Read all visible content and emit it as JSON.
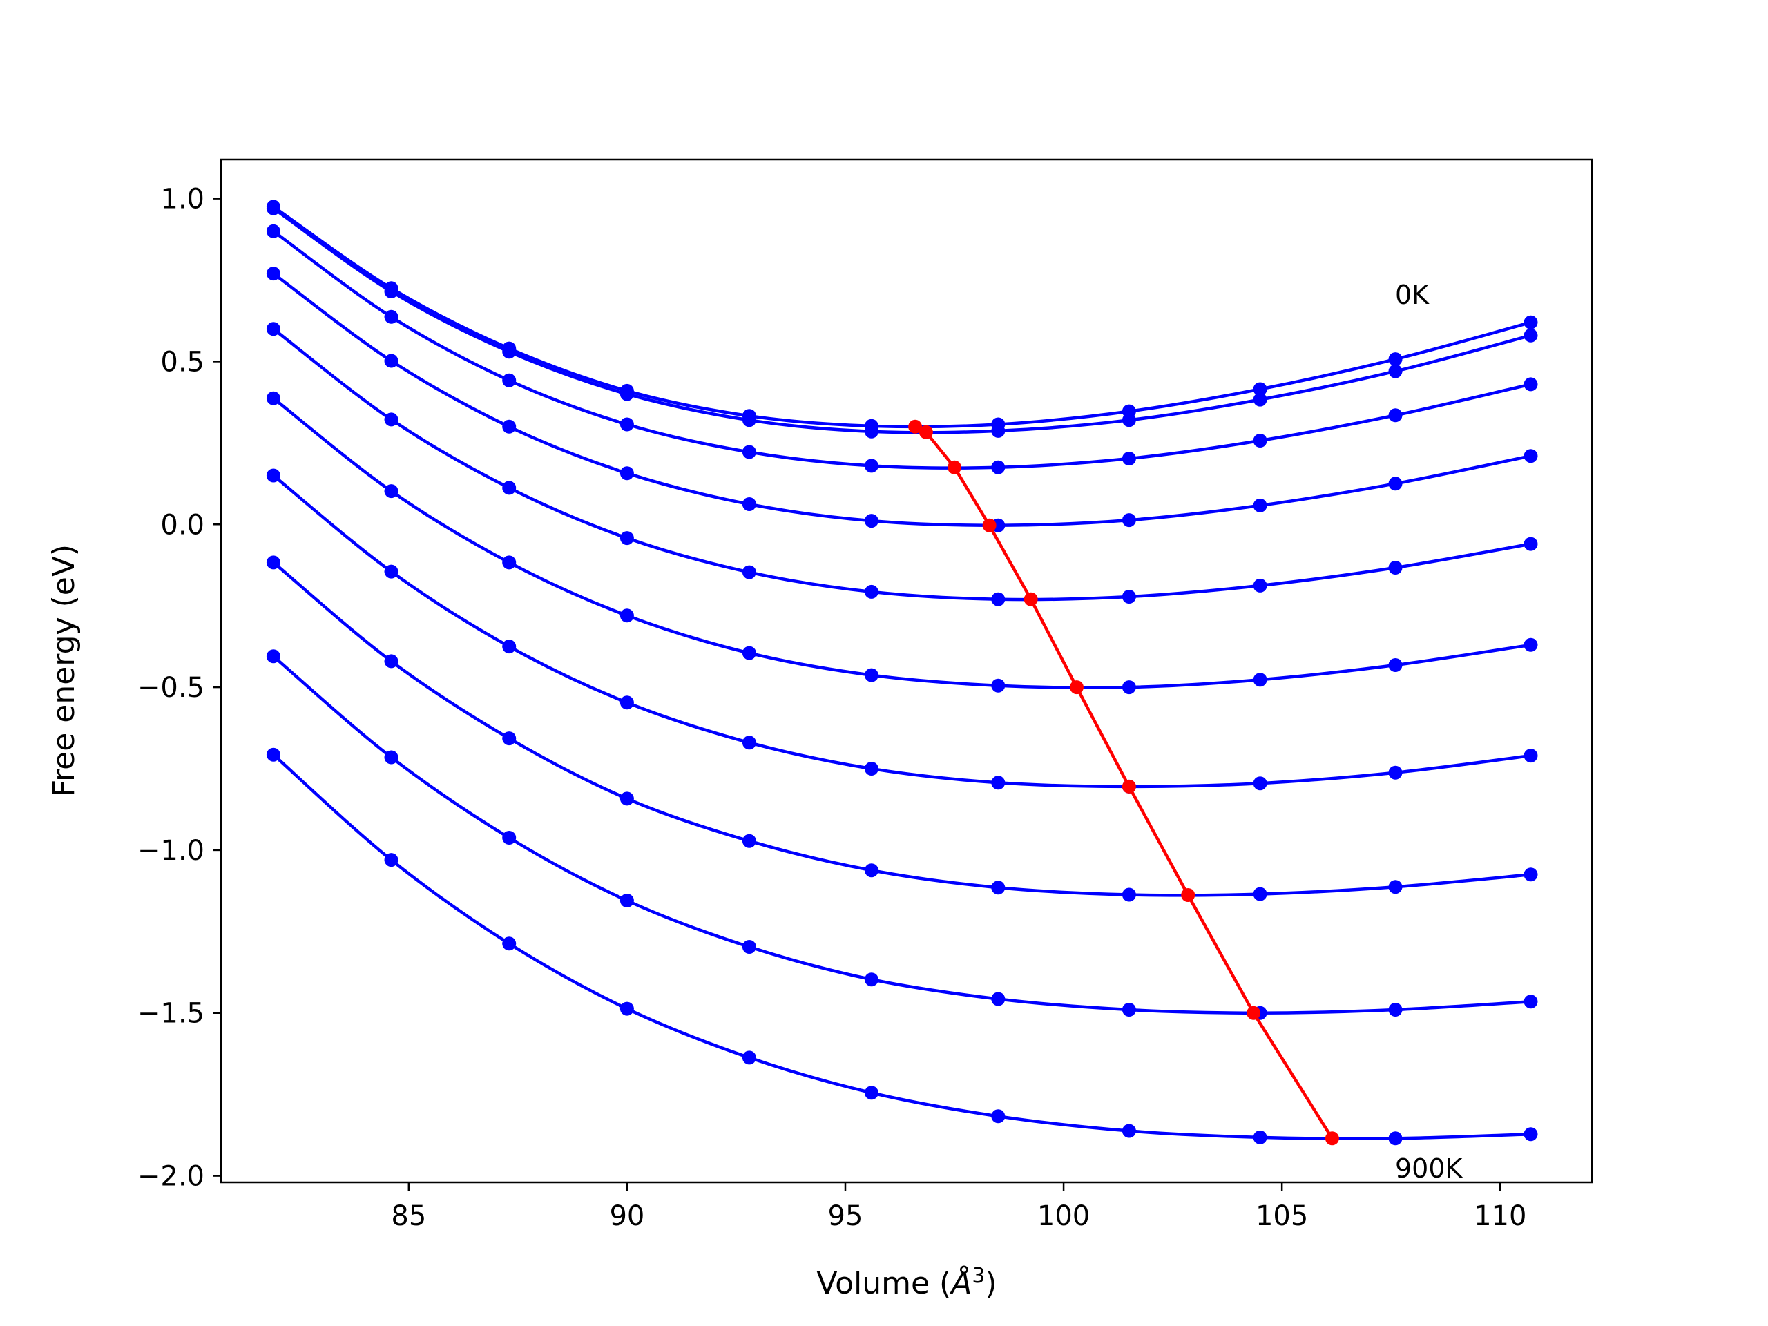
{
  "chart_data": {
    "type": "line",
    "title": "",
    "xlabel": "Volume (",
    "xlabel_symbol": "Å",
    "xlabel_exponent": "3",
    "xlabel_close": ")",
    "ylabel": "Free energy (eV)",
    "xlim": [
      80.7,
      112.1
    ],
    "ylim": [
      -2.02,
      1.12
    ],
    "grid": false,
    "legend": "none",
    "xticks": [
      85,
      90,
      95,
      100,
      105,
      110
    ],
    "xtick_labels": [
      "85",
      "90",
      "95",
      "100",
      "105",
      "110"
    ],
    "yticks": [
      1.0,
      0.5,
      0.0,
      -0.5,
      -1.0,
      -1.5,
      -2.0
    ],
    "ytick_labels": [
      "1.0",
      "0.5",
      "0.0",
      "−0.5",
      "−1.0",
      "−1.5",
      "−2.0"
    ],
    "x": [
      81.9,
      84.6,
      87.3,
      90.0,
      92.8,
      95.6,
      98.5,
      101.5,
      104.5,
      107.6,
      110.7
    ],
    "series": [
      {
        "values": [
          0.975,
          0.725,
          0.54,
          0.41,
          0.333,
          0.302,
          0.307,
          0.347,
          0.415,
          0.507,
          0.62
        ]
      },
      {
        "values": [
          0.97,
          0.715,
          0.53,
          0.4,
          0.32,
          0.285,
          0.287,
          0.32,
          0.383,
          0.47,
          0.58
        ]
      },
      {
        "values": [
          0.9,
          0.637,
          0.442,
          0.307,
          0.222,
          0.18,
          0.175,
          0.202,
          0.257,
          0.335,
          0.43
        ]
      },
      {
        "values": [
          0.77,
          0.502,
          0.3,
          0.157,
          0.062,
          0.011,
          -0.003,
          0.013,
          0.058,
          0.125,
          0.21
        ]
      },
      {
        "values": [
          0.6,
          0.322,
          0.112,
          -0.042,
          -0.147,
          -0.207,
          -0.23,
          -0.222,
          -0.188,
          -0.133,
          -0.06
        ]
      },
      {
        "values": [
          0.387,
          0.102,
          -0.117,
          -0.28,
          -0.395,
          -0.463,
          -0.495,
          -0.5,
          -0.477,
          -0.432,
          -0.37
        ]
      },
      {
        "values": [
          0.15,
          -0.145,
          -0.375,
          -0.547,
          -0.67,
          -0.75,
          -0.793,
          -0.805,
          -0.795,
          -0.762,
          -0.71
        ]
      },
      {
        "values": [
          -0.117,
          -0.42,
          -0.657,
          -0.842,
          -0.972,
          -1.062,
          -1.115,
          -1.137,
          -1.135,
          -1.113,
          -1.075
        ]
      },
      {
        "values": [
          -0.405,
          -0.715,
          -0.962,
          -1.155,
          -1.297,
          -1.397,
          -1.457,
          -1.49,
          -1.5,
          -1.49,
          -1.465
        ]
      },
      {
        "values": [
          -0.707,
          -1.03,
          -1.287,
          -1.487,
          -1.637,
          -1.745,
          -1.817,
          -1.862,
          -1.882,
          -1.885,
          -1.872
        ]
      }
    ],
    "equilibrium": {
      "x": [
        96.6,
        96.85,
        97.5,
        98.3,
        99.25,
        100.3,
        101.5,
        102.85,
        104.35,
        106.15
      ],
      "y": [
        0.3,
        0.283,
        0.175,
        -0.003,
        -0.23,
        -0.5,
        -0.805,
        -1.138,
        -1.5,
        -1.885
      ]
    },
    "annotations": [
      "0K",
      "900K"
    ],
    "colors": {
      "curves": "#0000ff",
      "equilibrium": "#ff0000",
      "axes": "#000000"
    }
  }
}
